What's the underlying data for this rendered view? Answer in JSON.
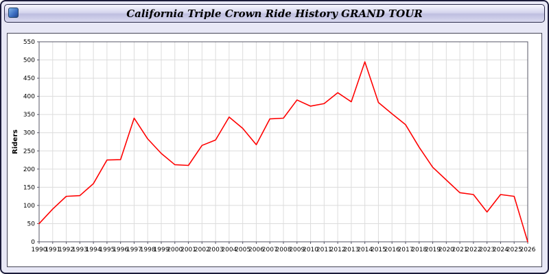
{
  "page": {
    "title": "California Triple Crown Ride History GRAND TOUR"
  },
  "colors": {
    "page_background": "#e8e8f6",
    "frame_border": "#1b1b3a",
    "plot_background": "#ffffff",
    "grid": "#dcdcdc",
    "axis": "#555566",
    "line": "#ff0000",
    "text": "#000000"
  },
  "chart_data": {
    "type": "line",
    "title": "California Triple Crown Ride History GRAND TOUR",
    "xlabel": "",
    "ylabel": "Riders",
    "ylim": [
      0,
      550
    ],
    "ytick_step": 50,
    "grid": true,
    "legend_position": "none",
    "line_color": "#ff0000",
    "categories": [
      1990,
      1991,
      1992,
      1993,
      1994,
      1995,
      1996,
      1997,
      1998,
      1999,
      2000,
      2001,
      2002,
      2003,
      2004,
      2005,
      2006,
      2007,
      2008,
      2009,
      2010,
      2011,
      2012,
      2013,
      2014,
      2015,
      2016,
      2017,
      2018,
      2019,
      2020,
      2021,
      2022,
      2023,
      2024,
      2025,
      2026
    ],
    "series": [
      {
        "name": "Riders",
        "values": [
          50,
          90,
          125,
          127,
          160,
          225,
          226,
          340,
          283,
          243,
          212,
          210,
          265,
          280,
          343,
          312,
          267,
          338,
          340,
          390,
          373,
          380,
          410,
          385,
          495,
          383,
          352,
          322,
          260,
          205,
          170,
          135,
          130,
          82,
          130,
          125,
          0
        ]
      }
    ]
  }
}
